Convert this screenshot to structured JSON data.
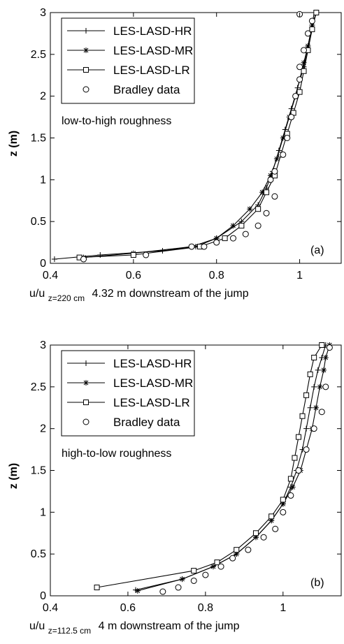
{
  "chart_data": [
    {
      "type": "line",
      "panel_label": "(a)",
      "annotation": "low-to-high roughness",
      "xlabel_main": "u/u",
      "xlabel_sub": "z=220 cm",
      "xlabel_tail": "4.32 m downstream of the jump",
      "ylabel": "z (m)",
      "xlim": [
        0.4,
        1.1
      ],
      "ylim": [
        0,
        3
      ],
      "x_ticks": [
        0.4,
        0.6,
        0.8,
        1
      ],
      "x_tick_labels": [
        "0.4",
        "0.6",
        "0.8",
        "1"
      ],
      "y_ticks": [
        0,
        0.5,
        1,
        1.5,
        2,
        2.5,
        3
      ],
      "y_tick_labels": [
        "0",
        "0.5",
        "1",
        "1.5",
        "2",
        "2.5",
        "3"
      ],
      "legend_position": "top-left",
      "series": [
        {
          "name": "LES-LASD-HR",
          "marker": "plus",
          "x": [
            0.41,
            0.52,
            0.67,
            0.75,
            0.8,
            0.86,
            0.9,
            0.92,
            0.935,
            0.95,
            0.965,
            0.98,
            0.995,
            1.01,
            1.02,
            1.03,
            1.035
          ],
          "y": [
            0.05,
            0.1,
            0.15,
            0.2,
            0.3,
            0.5,
            0.7,
            0.9,
            1.1,
            1.35,
            1.6,
            1.85,
            2.1,
            2.35,
            2.6,
            2.85,
            3.0
          ]
        },
        {
          "name": "LES-LASD-MR",
          "marker": "star",
          "x": [
            0.48,
            0.6,
            0.74,
            0.8,
            0.84,
            0.88,
            0.91,
            0.93,
            0.945,
            0.96,
            0.975,
            0.99,
            1.0,
            1.01,
            1.02,
            1.03,
            1.04
          ],
          "y": [
            0.07,
            0.12,
            0.2,
            0.3,
            0.45,
            0.65,
            0.85,
            1.05,
            1.25,
            1.5,
            1.75,
            2.0,
            2.2,
            2.4,
            2.6,
            2.85,
            3.0
          ]
        },
        {
          "name": "LES-LASD-LR",
          "marker": "square",
          "x": [
            0.47,
            0.6,
            0.76,
            0.82,
            0.86,
            0.9,
            0.92,
            0.94,
            0.955,
            0.97,
            0.985,
            1.0,
            1.01,
            1.02,
            1.03,
            1.04
          ],
          "y": [
            0.07,
            0.1,
            0.2,
            0.3,
            0.45,
            0.65,
            0.85,
            1.05,
            1.3,
            1.55,
            1.8,
            2.05,
            2.3,
            2.55,
            2.8,
            3.0
          ]
        },
        {
          "name": "Bradley data",
          "marker": "circle",
          "x": [
            0.48,
            0.63,
            0.74,
            0.77,
            0.8,
            0.84,
            0.87,
            0.9,
            0.92,
            0.94,
            0.93,
            0.94,
            0.96,
            0.97,
            0.98,
            0.99,
            1.0,
            1.0,
            1.01,
            1.02,
            1.03,
            1.0
          ],
          "y": [
            0.05,
            0.1,
            0.2,
            0.2,
            0.25,
            0.3,
            0.35,
            0.45,
            0.6,
            0.8,
            1.0,
            1.1,
            1.3,
            1.5,
            1.75,
            2.0,
            2.2,
            2.35,
            2.55,
            2.75,
            2.9,
            2.98
          ]
        }
      ]
    },
    {
      "type": "line",
      "panel_label": "(b)",
      "annotation": "high-to-low roughness",
      "xlabel_main": "u/u",
      "xlabel_sub": "z=112.5 cm",
      "xlabel_tail": "4 m downstream of the jump",
      "ylabel": "z (m)",
      "xlim": [
        0.4,
        1.15
      ],
      "ylim": [
        0,
        3
      ],
      "x_ticks": [
        0.4,
        0.6,
        0.8,
        1
      ],
      "x_tick_labels": [
        "0.4",
        "0.6",
        "0.8",
        "1"
      ],
      "y_ticks": [
        0,
        0.5,
        1,
        1.5,
        2,
        2.5,
        3
      ],
      "y_tick_labels": [
        "0",
        "0.5",
        "1",
        "1.5",
        "2",
        "2.5",
        "3"
      ],
      "legend_position": "top-left",
      "series": [
        {
          "name": "LES-LASD-HR",
          "marker": "plus",
          "x": [
            0.62,
            0.74,
            0.82,
            0.88,
            0.93,
            0.97,
            1.0,
            1.02,
            1.035,
            1.05,
            1.06,
            1.07,
            1.08,
            1.09,
            1.1,
            1.11
          ],
          "y": [
            0.07,
            0.2,
            0.35,
            0.5,
            0.7,
            0.9,
            1.1,
            1.3,
            1.5,
            1.75,
            2.0,
            2.25,
            2.5,
            2.7,
            2.85,
            3.0
          ]
        },
        {
          "name": "LES-LASD-MR",
          "marker": "star",
          "x": [
            0.625,
            0.74,
            0.82,
            0.88,
            0.93,
            0.97,
            1.0,
            1.025,
            1.045,
            1.06,
            1.075,
            1.085,
            1.095,
            1.105,
            1.11,
            1.12
          ],
          "y": [
            0.06,
            0.2,
            0.35,
            0.5,
            0.7,
            0.9,
            1.1,
            1.3,
            1.5,
            1.75,
            2.0,
            2.25,
            2.5,
            2.7,
            2.85,
            3.0
          ]
        },
        {
          "name": "LES-LASD-LR",
          "marker": "square",
          "x": [
            0.52,
            0.77,
            0.83,
            0.88,
            0.93,
            0.97,
            1.0,
            1.02,
            1.03,
            1.04,
            1.05,
            1.06,
            1.07,
            1.08,
            1.1
          ],
          "y": [
            0.1,
            0.3,
            0.4,
            0.55,
            0.75,
            0.95,
            1.15,
            1.4,
            1.65,
            1.9,
            2.15,
            2.4,
            2.65,
            2.85,
            3.0
          ]
        },
        {
          "name": "Bradley data",
          "marker": "circle",
          "x": [
            0.69,
            0.73,
            0.77,
            0.8,
            0.84,
            0.87,
            0.91,
            0.95,
            0.98,
            1.0,
            1.02,
            1.04,
            1.06,
            1.08,
            1.1,
            1.11,
            1.12
          ],
          "y": [
            0.05,
            0.1,
            0.18,
            0.25,
            0.35,
            0.45,
            0.55,
            0.7,
            0.8,
            1.0,
            1.2,
            1.5,
            1.75,
            2.0,
            2.2,
            2.5,
            2.97
          ]
        }
      ]
    }
  ]
}
